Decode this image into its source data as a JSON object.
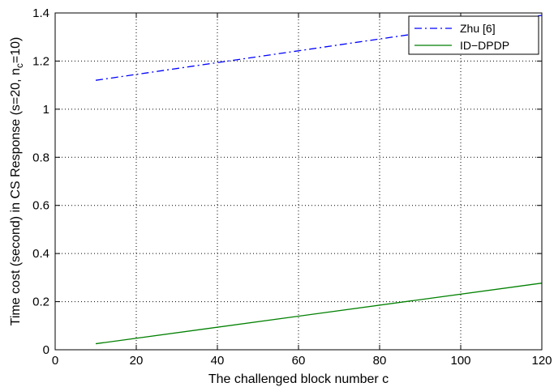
{
  "chart_data": {
    "type": "line",
    "xlabel": "The challenged block number c",
    "ylabel": {
      "main": "Time cost (second) in CS Response (s=20, n",
      "subscript": "c",
      "tail": "=10)"
    },
    "xlim": [
      0,
      120
    ],
    "ylim": [
      0,
      1.4
    ],
    "x_ticks": [
      0,
      20,
      40,
      60,
      80,
      100,
      120
    ],
    "y_ticks": [
      0,
      0.2,
      0.4,
      0.6,
      0.8,
      1,
      1.2,
      1.4
    ],
    "x_tick_labels": [
      "0",
      "20",
      "40",
      "60",
      "80",
      "100",
      "120"
    ],
    "y_tick_labels": [
      "0",
      "0.2",
      "0.4",
      "0.6",
      "0.8",
      "1",
      "1.2",
      "1.4"
    ],
    "grid": true,
    "legend_position": "top-right",
    "series": [
      {
        "name": "Zhu [6]",
        "color": "#0000ff",
        "style": "dash-dot",
        "x": [
          10,
          120
        ],
        "y": [
          1.12,
          1.39
        ]
      },
      {
        "name": "ID−DPDP",
        "color": "#008000",
        "style": "solid",
        "x": [
          10,
          120
        ],
        "y": [
          0.025,
          0.277
        ]
      }
    ]
  }
}
